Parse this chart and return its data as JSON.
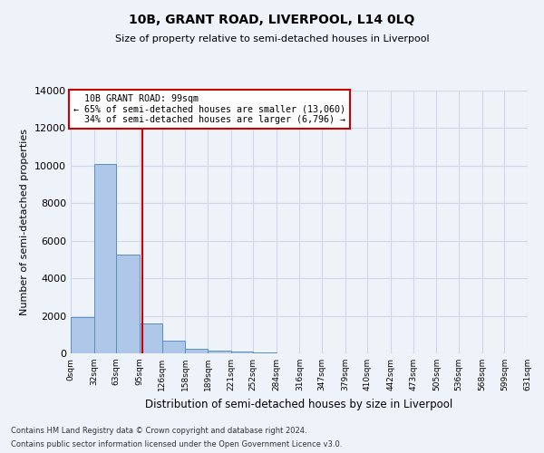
{
  "title": "10B, GRANT ROAD, LIVERPOOL, L14 0LQ",
  "subtitle": "Size of property relative to semi-detached houses in Liverpool",
  "xlabel": "Distribution of semi-detached houses by size in Liverpool",
  "ylabel": "Number of semi-detached properties",
  "property_label": "10B GRANT ROAD: 99sqm",
  "pct_smaller": 65,
  "pct_larger": 34,
  "count_smaller": 13060,
  "count_larger": 6796,
  "bin_labels": [
    "0sqm",
    "32sqm",
    "63sqm",
    "95sqm",
    "126sqm",
    "158sqm",
    "189sqm",
    "221sqm",
    "252sqm",
    "284sqm",
    "316sqm",
    "347sqm",
    "379sqm",
    "410sqm",
    "442sqm",
    "473sqm",
    "505sqm",
    "536sqm",
    "568sqm",
    "599sqm",
    "631sqm"
  ],
  "bin_edges": [
    0,
    32,
    63,
    95,
    126,
    158,
    189,
    221,
    252,
    284,
    316,
    347,
    379,
    410,
    442,
    473,
    505,
    536,
    568,
    599,
    631
  ],
  "bar_heights": [
    1950,
    10100,
    5250,
    1600,
    680,
    260,
    150,
    80,
    60,
    0,
    0,
    0,
    0,
    0,
    0,
    0,
    0,
    0,
    0,
    0
  ],
  "bar_color": "#aec6e8",
  "bar_edge_color": "#5a8fc0",
  "vline_x": 99,
  "vline_color": "#cc0000",
  "annotation_box_color": "#cc0000",
  "grid_color": "#d0d8e8",
  "background_color": "#eef2f9",
  "ylim": [
    0,
    14000
  ],
  "yticks": [
    0,
    2000,
    4000,
    6000,
    8000,
    10000,
    12000,
    14000
  ],
  "footer1": "Contains HM Land Registry data © Crown copyright and database right 2024.",
  "footer2": "Contains public sector information licensed under the Open Government Licence v3.0."
}
